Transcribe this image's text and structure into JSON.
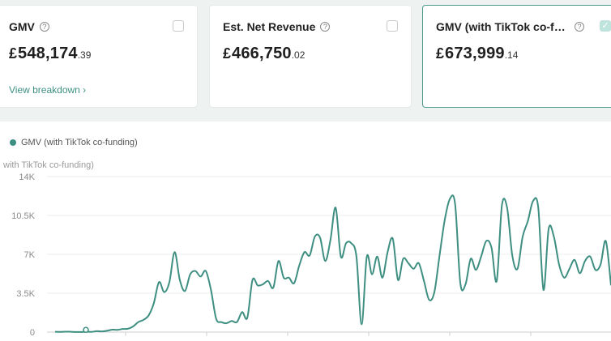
{
  "cards": [
    {
      "title": "GMV",
      "currency": "£",
      "value": "548,174",
      "decimals": ".39",
      "link": "View breakdown ›",
      "checked": false
    },
    {
      "title": "Est. Net Revenue",
      "currency": "£",
      "value": "466,750",
      "decimals": ".02",
      "checked": false
    },
    {
      "title": "GMV (with TikTok co-fun...",
      "currency": "£",
      "value": "673,999",
      "decimals": ".14",
      "checked": true
    }
  ],
  "colors": {
    "accent": "#3e8f82",
    "border_selected": "#4a9a8d"
  },
  "chart_data": {
    "type": "line",
    "legend": [
      "GMV (with TikTok co-funding)"
    ],
    "ylabel": "with TikTok co-funding)",
    "y_ticks": [
      "0",
      "3.5K",
      "7K",
      "10.5K",
      "14K"
    ],
    "ylim": [
      0,
      14000
    ],
    "series": [
      {
        "name": "GMV (with TikTok co-funding)",
        "values": [
          30,
          20,
          40,
          30,
          10,
          10,
          30,
          20,
          80,
          60,
          120,
          220,
          200,
          280,
          300,
          500,
          900,
          1100,
          1500,
          2600,
          4500,
          3600,
          4500,
          7200,
          4700,
          3700,
          5200,
          5500,
          5000,
          5500,
          3800,
          1200,
          900,
          800,
          1000,
          900,
          1800,
          1300,
          4700,
          4200,
          4300,
          4600,
          4000,
          6400,
          4900,
          4900,
          4400,
          6000,
          7200,
          6900,
          8600,
          8500,
          6400,
          8300,
          11200,
          6800,
          8000,
          8000,
          6800,
          700,
          6800,
          5200,
          6800,
          4900,
          7200,
          8400,
          4700,
          6600,
          6200,
          5700,
          6200,
          4600,
          2900,
          3600,
          6900,
          10100,
          12000,
          11500,
          4400,
          4300,
          6600,
          5600,
          6800,
          8200,
          7600,
          4600,
          11400,
          11200,
          6900,
          5700,
          8600,
          10000,
          11800,
          11200,
          3800,
          9300,
          8600,
          6100,
          4900,
          5700,
          6500,
          5300,
          6400,
          6800,
          5600,
          6100,
          8200,
          4200
        ]
      }
    ],
    "x_start_marker_index": 12
  }
}
